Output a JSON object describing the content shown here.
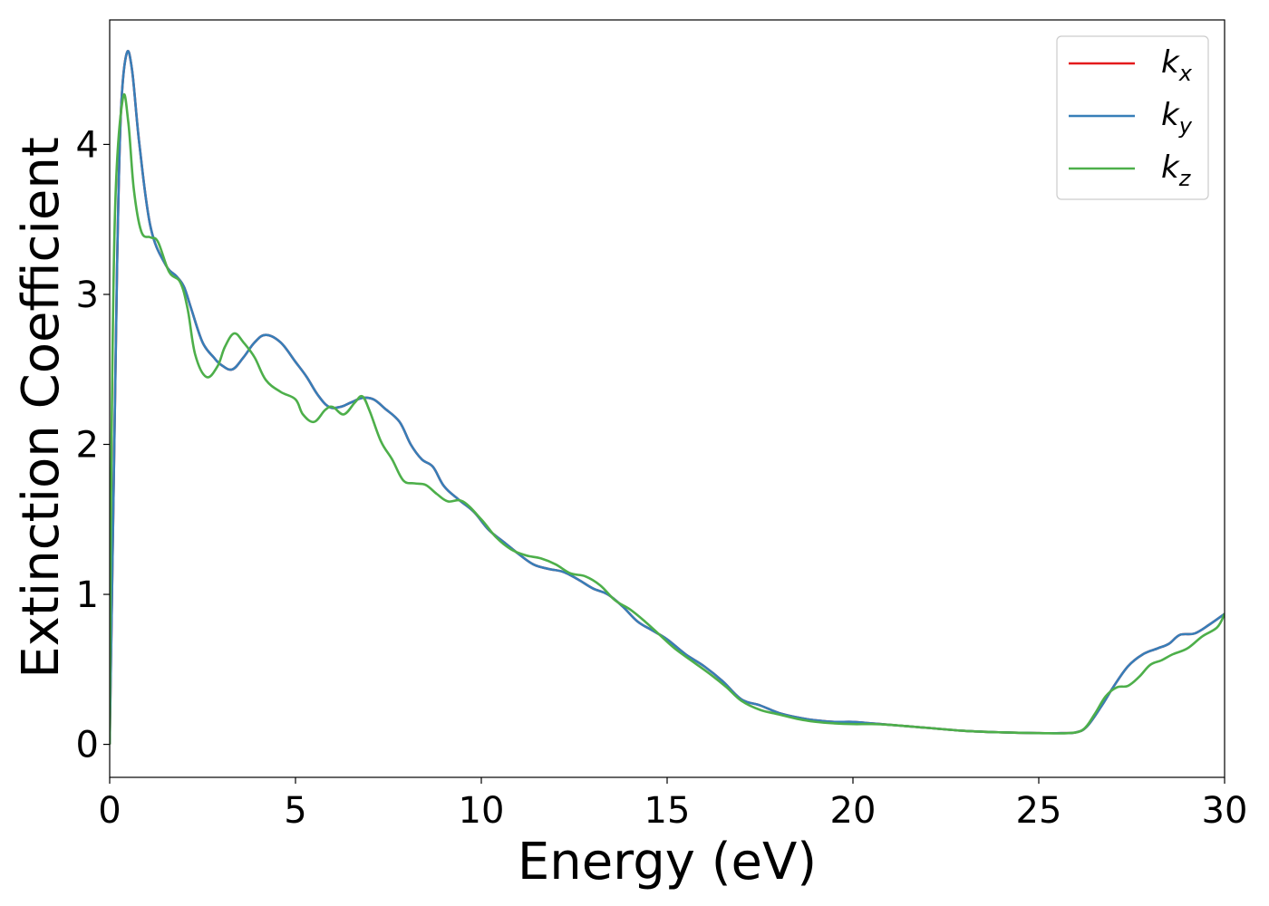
{
  "chart_data": {
    "type": "line",
    "xlabel": "Energy (eV)",
    "ylabel": "Extinction Coefficient",
    "xlim": [
      0,
      30
    ],
    "ylim": [
      -0.22,
      4.83
    ],
    "xticks": [
      0,
      5,
      10,
      15,
      20,
      25,
      30
    ],
    "xtick_labels": [
      "0",
      "5",
      "10",
      "15",
      "20",
      "25",
      "30"
    ],
    "yticks": [
      0,
      1,
      2,
      3,
      4
    ],
    "ytick_labels": [
      "0",
      "1",
      "2",
      "3",
      "4"
    ],
    "grid": false,
    "legend": {
      "placement": "top-right",
      "entries": [
        {
          "base": "k",
          "sub": "x",
          "color": "#e41a1c"
        },
        {
          "base": "k",
          "sub": "y",
          "color": "#377eb8"
        },
        {
          "base": "k",
          "sub": "z",
          "color": "#4daf4a"
        }
      ]
    },
    "series": [
      {
        "name": "k_x",
        "color": "#e41a1c",
        "points": [
          [
            0,
            0
          ],
          [
            0.1,
            1.6
          ],
          [
            0.2,
            3.2
          ],
          [
            0.3,
            4.2
          ],
          [
            0.45,
            4.6
          ],
          [
            0.6,
            4.5
          ],
          [
            0.8,
            4.0
          ],
          [
            1.1,
            3.45
          ],
          [
            1.5,
            3.2
          ],
          [
            1.8,
            3.12
          ],
          [
            2.0,
            3.05
          ],
          [
            2.2,
            2.9
          ],
          [
            2.5,
            2.68
          ],
          [
            2.8,
            2.58
          ],
          [
            3.0,
            2.53
          ],
          [
            3.3,
            2.5
          ],
          [
            3.6,
            2.58
          ],
          [
            3.9,
            2.68
          ],
          [
            4.2,
            2.73
          ],
          [
            4.6,
            2.68
          ],
          [
            5.0,
            2.55
          ],
          [
            5.3,
            2.45
          ],
          [
            5.6,
            2.33
          ],
          [
            5.9,
            2.25
          ],
          [
            6.2,
            2.25
          ],
          [
            6.5,
            2.28
          ],
          [
            6.8,
            2.31
          ],
          [
            7.1,
            2.3
          ],
          [
            7.4,
            2.24
          ],
          [
            7.8,
            2.15
          ],
          [
            8.1,
            2.0
          ],
          [
            8.4,
            1.9
          ],
          [
            8.7,
            1.85
          ],
          [
            9.0,
            1.72
          ],
          [
            9.4,
            1.63
          ],
          [
            9.8,
            1.55
          ],
          [
            10.2,
            1.43
          ],
          [
            10.6,
            1.35
          ],
          [
            11.0,
            1.27
          ],
          [
            11.4,
            1.2
          ],
          [
            11.8,
            1.17
          ],
          [
            12.2,
            1.15
          ],
          [
            12.6,
            1.1
          ],
          [
            13.0,
            1.04
          ],
          [
            13.4,
            1.0
          ],
          [
            13.8,
            0.92
          ],
          [
            14.2,
            0.82
          ],
          [
            14.6,
            0.76
          ],
          [
            15.0,
            0.7
          ],
          [
            15.5,
            0.6
          ],
          [
            16.0,
            0.52
          ],
          [
            16.5,
            0.42
          ],
          [
            17.0,
            0.3
          ],
          [
            17.5,
            0.26
          ],
          [
            18.0,
            0.21
          ],
          [
            18.5,
            0.18
          ],
          [
            19.0,
            0.16
          ],
          [
            19.5,
            0.15
          ],
          [
            20.0,
            0.15
          ],
          [
            20.5,
            0.14
          ],
          [
            21.0,
            0.13
          ],
          [
            21.5,
            0.12
          ],
          [
            22.0,
            0.11
          ],
          [
            23.0,
            0.09
          ],
          [
            24.0,
            0.08
          ],
          [
            25.0,
            0.075
          ],
          [
            25.6,
            0.075
          ],
          [
            26.0,
            0.08
          ],
          [
            26.3,
            0.12
          ],
          [
            26.7,
            0.26
          ],
          [
            27.0,
            0.38
          ],
          [
            27.4,
            0.52
          ],
          [
            27.8,
            0.6
          ],
          [
            28.2,
            0.64
          ],
          [
            28.5,
            0.67
          ],
          [
            28.8,
            0.73
          ],
          [
            29.2,
            0.74
          ],
          [
            29.6,
            0.8
          ],
          [
            30.0,
            0.87
          ]
        ]
      },
      {
        "name": "k_y",
        "color": "#377eb8",
        "points": [
          [
            0,
            0
          ],
          [
            0.1,
            1.6
          ],
          [
            0.2,
            3.2
          ],
          [
            0.3,
            4.2
          ],
          [
            0.45,
            4.6
          ],
          [
            0.6,
            4.5
          ],
          [
            0.8,
            4.0
          ],
          [
            1.1,
            3.45
          ],
          [
            1.5,
            3.2
          ],
          [
            1.8,
            3.12
          ],
          [
            2.0,
            3.05
          ],
          [
            2.2,
            2.9
          ],
          [
            2.5,
            2.68
          ],
          [
            2.8,
            2.58
          ],
          [
            3.0,
            2.53
          ],
          [
            3.3,
            2.5
          ],
          [
            3.6,
            2.58
          ],
          [
            3.9,
            2.68
          ],
          [
            4.2,
            2.73
          ],
          [
            4.6,
            2.68
          ],
          [
            5.0,
            2.55
          ],
          [
            5.3,
            2.45
          ],
          [
            5.6,
            2.33
          ],
          [
            5.9,
            2.25
          ],
          [
            6.2,
            2.25
          ],
          [
            6.5,
            2.28
          ],
          [
            6.8,
            2.31
          ],
          [
            7.1,
            2.3
          ],
          [
            7.4,
            2.24
          ],
          [
            7.8,
            2.15
          ],
          [
            8.1,
            2.0
          ],
          [
            8.4,
            1.9
          ],
          [
            8.7,
            1.85
          ],
          [
            9.0,
            1.72
          ],
          [
            9.4,
            1.63
          ],
          [
            9.8,
            1.55
          ],
          [
            10.2,
            1.43
          ],
          [
            10.6,
            1.35
          ],
          [
            11.0,
            1.27
          ],
          [
            11.4,
            1.2
          ],
          [
            11.8,
            1.17
          ],
          [
            12.2,
            1.15
          ],
          [
            12.6,
            1.1
          ],
          [
            13.0,
            1.04
          ],
          [
            13.4,
            1.0
          ],
          [
            13.8,
            0.92
          ],
          [
            14.2,
            0.82
          ],
          [
            14.6,
            0.76
          ],
          [
            15.0,
            0.7
          ],
          [
            15.5,
            0.6
          ],
          [
            16.0,
            0.52
          ],
          [
            16.5,
            0.42
          ],
          [
            17.0,
            0.3
          ],
          [
            17.5,
            0.26
          ],
          [
            18.0,
            0.21
          ],
          [
            18.5,
            0.18
          ],
          [
            19.0,
            0.16
          ],
          [
            19.5,
            0.15
          ],
          [
            20.0,
            0.15
          ],
          [
            20.5,
            0.14
          ],
          [
            21.0,
            0.13
          ],
          [
            21.5,
            0.12
          ],
          [
            22.0,
            0.11
          ],
          [
            23.0,
            0.09
          ],
          [
            24.0,
            0.08
          ],
          [
            25.0,
            0.075
          ],
          [
            25.6,
            0.075
          ],
          [
            26.0,
            0.08
          ],
          [
            26.3,
            0.12
          ],
          [
            26.7,
            0.26
          ],
          [
            27.0,
            0.38
          ],
          [
            27.4,
            0.52
          ],
          [
            27.8,
            0.6
          ],
          [
            28.2,
            0.64
          ],
          [
            28.5,
            0.67
          ],
          [
            28.8,
            0.73
          ],
          [
            29.2,
            0.74
          ],
          [
            29.6,
            0.8
          ],
          [
            30.0,
            0.87
          ]
        ]
      },
      {
        "name": "k_z",
        "color": "#4daf4a",
        "points": [
          [
            0,
            0
          ],
          [
            0.05,
            2.0
          ],
          [
            0.15,
            3.6
          ],
          [
            0.35,
            4.3
          ],
          [
            0.5,
            4.15
          ],
          [
            0.65,
            3.7
          ],
          [
            0.85,
            3.42
          ],
          [
            1.1,
            3.38
          ],
          [
            1.3,
            3.35
          ],
          [
            1.6,
            3.15
          ],
          [
            1.9,
            3.08
          ],
          [
            2.1,
            2.9
          ],
          [
            2.3,
            2.6
          ],
          [
            2.6,
            2.45
          ],
          [
            2.9,
            2.52
          ],
          [
            3.1,
            2.65
          ],
          [
            3.35,
            2.74
          ],
          [
            3.6,
            2.68
          ],
          [
            3.9,
            2.58
          ],
          [
            4.2,
            2.43
          ],
          [
            4.6,
            2.35
          ],
          [
            5.0,
            2.3
          ],
          [
            5.2,
            2.2
          ],
          [
            5.5,
            2.15
          ],
          [
            5.8,
            2.23
          ],
          [
            6.0,
            2.25
          ],
          [
            6.3,
            2.2
          ],
          [
            6.6,
            2.28
          ],
          [
            6.8,
            2.32
          ],
          [
            7.0,
            2.22
          ],
          [
            7.3,
            2.02
          ],
          [
            7.6,
            1.9
          ],
          [
            7.9,
            1.76
          ],
          [
            8.2,
            1.74
          ],
          [
            8.5,
            1.73
          ],
          [
            8.8,
            1.67
          ],
          [
            9.1,
            1.62
          ],
          [
            9.5,
            1.62
          ],
          [
            10.0,
            1.5
          ],
          [
            10.4,
            1.38
          ],
          [
            10.8,
            1.3
          ],
          [
            11.2,
            1.26
          ],
          [
            11.6,
            1.24
          ],
          [
            12.0,
            1.2
          ],
          [
            12.4,
            1.14
          ],
          [
            12.8,
            1.12
          ],
          [
            13.2,
            1.06
          ],
          [
            13.6,
            0.96
          ],
          [
            14.0,
            0.9
          ],
          [
            14.4,
            0.82
          ],
          [
            14.8,
            0.73
          ],
          [
            15.2,
            0.64
          ],
          [
            15.7,
            0.55
          ],
          [
            16.2,
            0.46
          ],
          [
            16.6,
            0.38
          ],
          [
            17.0,
            0.29
          ],
          [
            17.5,
            0.23
          ],
          [
            18.0,
            0.2
          ],
          [
            18.5,
            0.17
          ],
          [
            19.0,
            0.15
          ],
          [
            19.5,
            0.14
          ],
          [
            20.0,
            0.135
          ],
          [
            20.5,
            0.135
          ],
          [
            21.0,
            0.13
          ],
          [
            21.5,
            0.12
          ],
          [
            22.0,
            0.11
          ],
          [
            23.0,
            0.09
          ],
          [
            24.0,
            0.08
          ],
          [
            25.0,
            0.075
          ],
          [
            25.8,
            0.075
          ],
          [
            26.2,
            0.1
          ],
          [
            26.5,
            0.2
          ],
          [
            26.8,
            0.32
          ],
          [
            27.1,
            0.38
          ],
          [
            27.4,
            0.39
          ],
          [
            27.7,
            0.45
          ],
          [
            28.0,
            0.53
          ],
          [
            28.3,
            0.56
          ],
          [
            28.6,
            0.6
          ],
          [
            29.0,
            0.64
          ],
          [
            29.4,
            0.72
          ],
          [
            29.8,
            0.78
          ],
          [
            30.0,
            0.87
          ]
        ]
      }
    ]
  }
}
